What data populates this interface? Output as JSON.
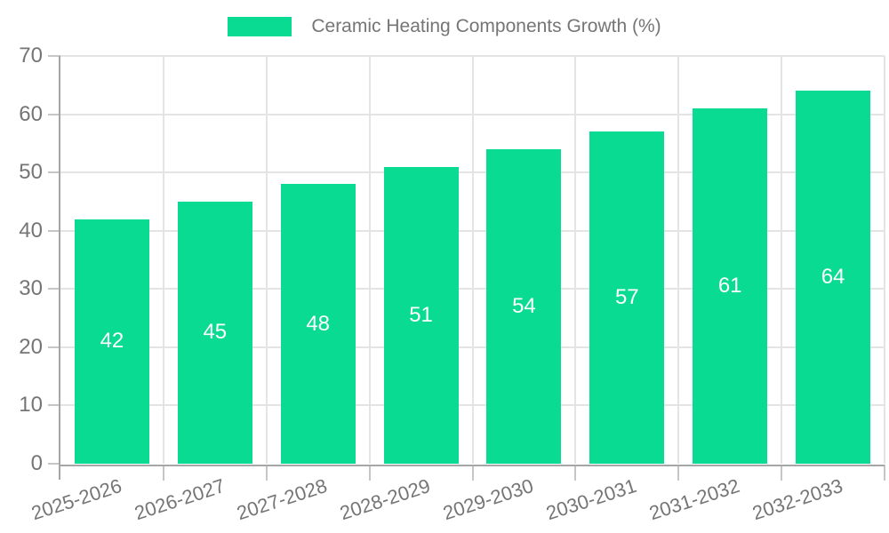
{
  "chart_data": {
    "type": "bar",
    "title": "Ceramic Heating Components Growth (%)",
    "categories": [
      "2025-2026",
      "2026-2027",
      "2027-2028",
      "2028-2029",
      "2029-2030",
      "2030-2031",
      "2031-2032",
      "2032-2033"
    ],
    "series": [
      {
        "name": "Ceramic Heating Components Growth (%)",
        "values": [
          42,
          45,
          48,
          51,
          54,
          57,
          61,
          64
        ]
      }
    ],
    "bar_value_labels": [
      "42",
      "45",
      "48",
      "51",
      "54",
      "57",
      "61",
      "64"
    ],
    "xlabel": "",
    "ylabel": "",
    "ylim": [
      0,
      70
    ],
    "yticks": [
      0,
      10,
      20,
      30,
      40,
      50,
      60,
      70
    ],
    "ytick_labels": [
      "0",
      "10",
      "20",
      "30",
      "40",
      "50",
      "60",
      "70"
    ],
    "grid": true,
    "x_tick_rotation_deg": -18,
    "legend": {
      "position": "top-center",
      "items": [
        {
          "label": "Ceramic Heating Components Growth (%)",
          "color": "#0ADB92"
        }
      ]
    },
    "colors": {
      "bar": "#0ADB92",
      "bar_value_text": "#ffffff",
      "axis_text": "#757575",
      "gridline": "#E4E4E4",
      "tick": "#C6C6C6",
      "axis_line": "#A6A6A6",
      "background": "#ffffff"
    }
  }
}
